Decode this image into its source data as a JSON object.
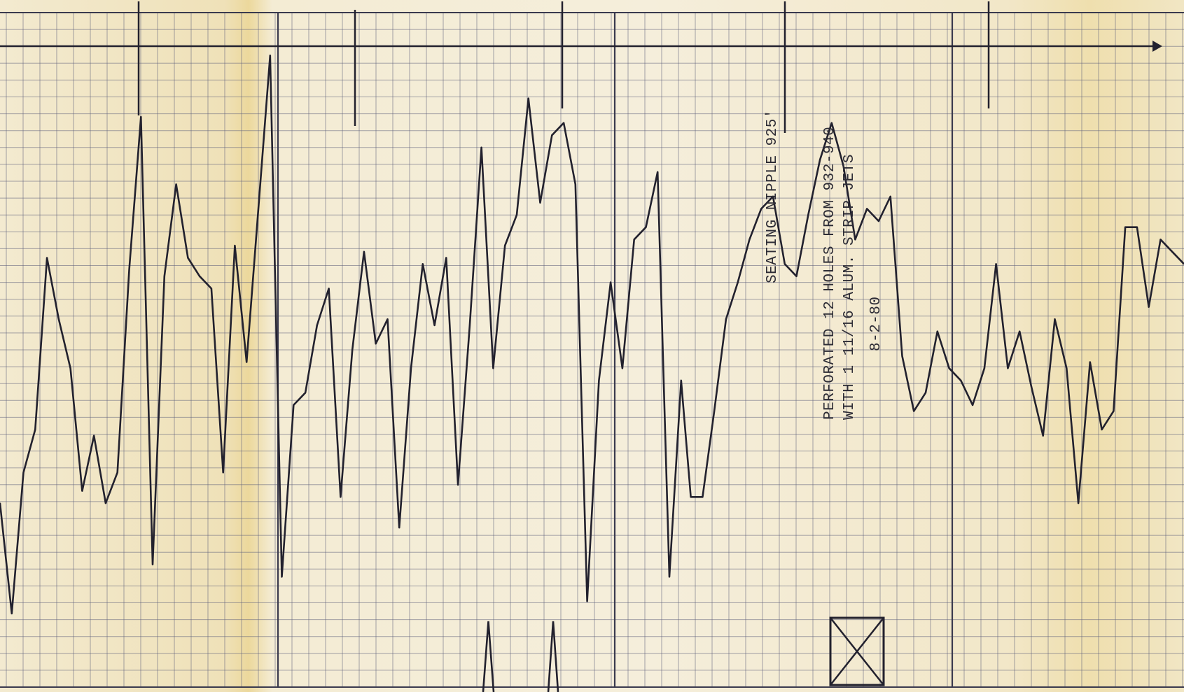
{
  "chart_data": {
    "type": "line",
    "title": "",
    "xlabel": "",
    "ylabel": "",
    "grid": true,
    "legend": "none",
    "annotations": {
      "seating": "SEATING NIPPLE 925'",
      "perforated": "PERFORATED 12 HOLES FROM 932-940",
      "with_jets": "WITH 1 11/16 ALUM. STRIP JETS",
      "date": "8-2-80"
    },
    "series": [
      {
        "x": [
          0,
          1.7,
          3.4,
          5.1,
          6.8,
          8.5,
          10.2,
          11.9,
          13.6,
          15.3,
          17,
          18.7,
          20.4,
          22.1,
          23.8,
          25.5,
          27.2,
          28.9,
          30.6,
          32.3,
          34,
          35.7,
          37.4,
          39.1,
          40.8,
          42.5,
          44.2,
          45.9,
          47.6,
          49.3,
          51,
          52.7,
          54.4,
          56.1,
          57.8,
          59.5,
          61.2,
          62.9,
          64.6,
          66.3,
          68,
          69.7,
          71.4,
          73.1,
          74.8,
          76.5,
          78.2,
          79.9,
          81.6,
          83.3,
          85,
          86.7,
          88.4,
          90.1,
          91.8,
          93.5,
          95.2,
          96.9,
          98.6,
          100,
          101.7,
          103.4,
          105.1,
          106.8,
          108.5,
          110.2,
          111.9,
          113.6,
          115.3,
          117,
          118.7,
          120.4,
          122.1,
          123.8,
          125.5,
          127.2,
          128.9,
          130.6,
          132.3,
          134,
          135.7,
          137.4,
          139.1,
          140.8,
          142.5,
          144.2,
          145.9,
          147.6,
          149.3,
          151,
          152.7,
          154.4,
          156.1,
          157.8,
          159.5,
          161.2,
          162.9,
          164.6,
          166.3,
          168,
          169.7,
          171.4
        ],
        "values": [
          3.0,
          1.2,
          3.5,
          4.2,
          7.0,
          6.0,
          5.2,
          3.2,
          4.1,
          3.0,
          3.5,
          6.8,
          9.3,
          2.0,
          6.7,
          8.2,
          7.0,
          6.7,
          6.5,
          3.5,
          7.2,
          5.3,
          7.8,
          10.3,
          1.8,
          4.6,
          4.8,
          5.9,
          6.5,
          3.1,
          5.5,
          7.1,
          5.6,
          6.0,
          2.6,
          5.2,
          6.9,
          5.9,
          7.0,
          3.3,
          5.9,
          8.8,
          5.2,
          7.2,
          7.7,
          9.6,
          7.9,
          9.0,
          9.2,
          8.2,
          1.4,
          5.0,
          6.6,
          5.2,
          7.3,
          7.5,
          8.4,
          1.8,
          5.0,
          3.1,
          3.1,
          4.5,
          6.0,
          6.6,
          7.3,
          7.8,
          8.0,
          6.9,
          6.7,
          7.7,
          8.6,
          9.2,
          8.5,
          7.3,
          7.8,
          7.6,
          8.0,
          5.4,
          4.5,
          4.8,
          5.8,
          5.2,
          5.0,
          4.6,
          5.2,
          6.9,
          5.2,
          5.8,
          4.9,
          4.1,
          6.0,
          5.2,
          3.0,
          5.3,
          4.2,
          4.5,
          7.5,
          7.5,
          6.2,
          7.3,
          7.1,
          6.9
        ]
      }
    ]
  },
  "colors": {
    "paper": "#efe4c0",
    "paper_light": "#f6efd8",
    "grid": "#5c5e7a",
    "ink": "#22212e"
  }
}
